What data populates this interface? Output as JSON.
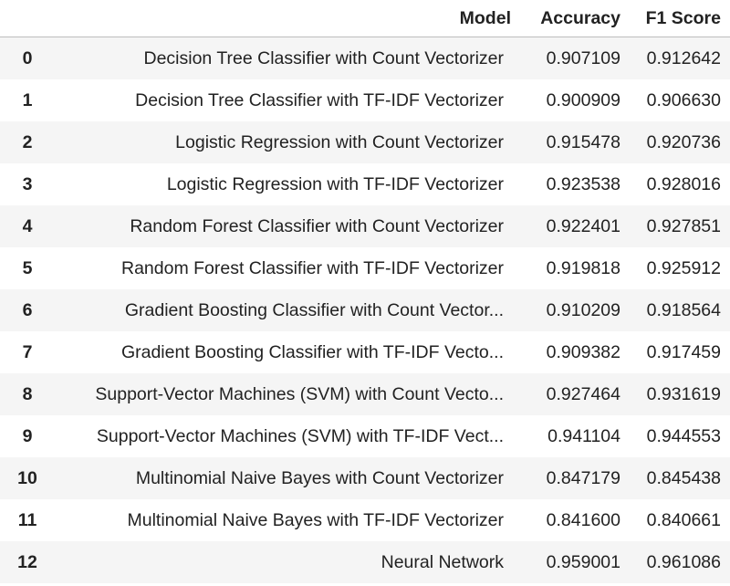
{
  "table": {
    "columns": [
      "",
      "Model",
      "Accuracy",
      "F1 Score"
    ],
    "rows": [
      {
        "index": "0",
        "model": "Decision Tree Classifier with Count Vectorizer",
        "accuracy": "0.907109",
        "f1": "0.912642"
      },
      {
        "index": "1",
        "model": "Decision Tree Classifier with TF-IDF Vectorizer",
        "accuracy": "0.900909",
        "f1": "0.906630"
      },
      {
        "index": "2",
        "model": "Logistic Regression with Count Vectorizer",
        "accuracy": "0.915478",
        "f1": "0.920736"
      },
      {
        "index": "3",
        "model": "Logistic Regression with TF-IDF Vectorizer",
        "accuracy": "0.923538",
        "f1": "0.928016"
      },
      {
        "index": "4",
        "model": "Random Forest Classifier with Count Vectorizer",
        "accuracy": "0.922401",
        "f1": "0.927851"
      },
      {
        "index": "5",
        "model": "Random Forest Classifier with TF-IDF Vectorizer",
        "accuracy": "0.919818",
        "f1": "0.925912"
      },
      {
        "index": "6",
        "model": "Gradient Boosting Classifier with Count Vector...",
        "accuracy": "0.910209",
        "f1": "0.918564"
      },
      {
        "index": "7",
        "model": "Gradient Boosting Classifier with TF-IDF Vecto...",
        "accuracy": "0.909382",
        "f1": "0.917459"
      },
      {
        "index": "8",
        "model": "Support-Vector Machines (SVM) with Count Vecto...",
        "accuracy": "0.927464",
        "f1": "0.931619"
      },
      {
        "index": "9",
        "model": "Support-Vector Machines (SVM) with TF-IDF Vect...",
        "accuracy": "0.941104",
        "f1": "0.944553"
      },
      {
        "index": "10",
        "model": "Multinomial Naive Bayes with Count Vectorizer",
        "accuracy": "0.847179",
        "f1": "0.845438"
      },
      {
        "index": "11",
        "model": "Multinomial Naive Bayes with TF-IDF Vectorizer",
        "accuracy": "0.841600",
        "f1": "0.840661"
      },
      {
        "index": "12",
        "model": "Neural Network",
        "accuracy": "0.959001",
        "f1": "0.961086"
      }
    ]
  }
}
